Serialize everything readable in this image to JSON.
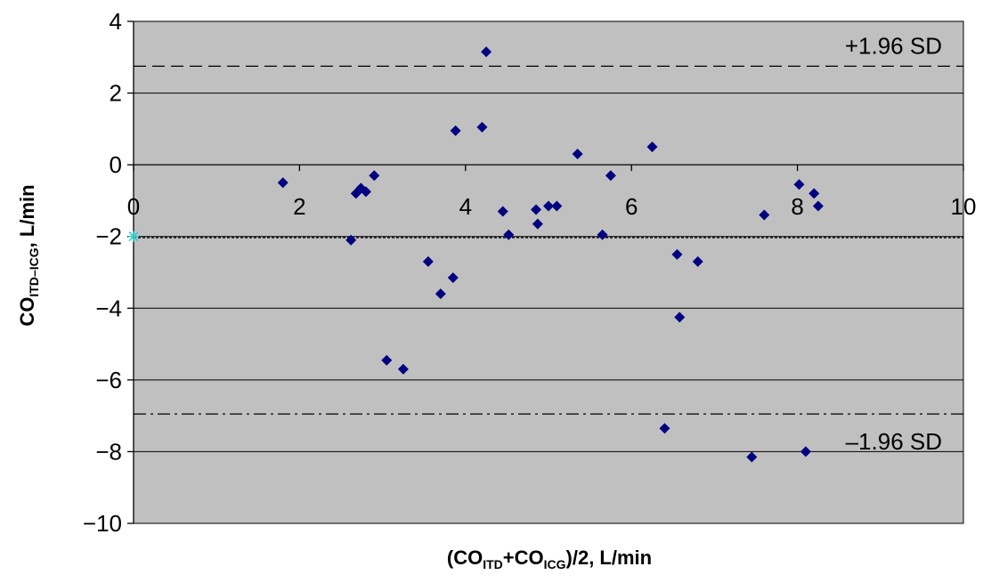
{
  "chart_data": {
    "type": "scatter",
    "title": "",
    "xlabel": {
      "prefix": "(CO",
      "sub1": "ITD",
      "middle": "+CO",
      "sub2": "ICG",
      "suffix": ")/2, L/min"
    },
    "ylabel": {
      "prefix": "CO",
      "sub": "ITD–ICG",
      "suffix": ", L/min"
    },
    "xlim": [
      0,
      10
    ],
    "ylim": [
      -10,
      4
    ],
    "x_ticks": [
      {
        "value": 0,
        "label": "0"
      },
      {
        "value": 2,
        "label": "2"
      },
      {
        "value": 4,
        "label": "4"
      },
      {
        "value": 6,
        "label": "6"
      },
      {
        "value": 8,
        "label": "8"
      },
      {
        "value": 10,
        "label": "10"
      }
    ],
    "y_ticks": [
      {
        "value": 4,
        "label": "4"
      },
      {
        "value": 2,
        "label": "2"
      },
      {
        "value": 0,
        "label": "0"
      },
      {
        "value": -2,
        "label": "−2"
      },
      {
        "value": -4,
        "label": "−4"
      },
      {
        "value": -6,
        "label": "−6"
      },
      {
        "value": -8,
        "label": "−8"
      },
      {
        "value": -10,
        "label": "−10"
      }
    ],
    "grid": true,
    "plot_background": "#c0c0c0",
    "marker_color": "#000080",
    "mean_marker_color": "#33cccc",
    "points": [
      {
        "x": 1.8,
        "y": -0.5
      },
      {
        "x": 2.62,
        "y": -2.1
      },
      {
        "x": 2.68,
        "y": -0.8
      },
      {
        "x": 2.74,
        "y": -0.65
      },
      {
        "x": 2.8,
        "y": -0.75
      },
      {
        "x": 2.9,
        "y": -0.3
      },
      {
        "x": 3.05,
        "y": -5.45
      },
      {
        "x": 3.25,
        "y": -5.7
      },
      {
        "x": 3.55,
        "y": -2.7
      },
      {
        "x": 3.7,
        "y": -3.6
      },
      {
        "x": 3.85,
        "y": -3.15
      },
      {
        "x": 3.88,
        "y": 0.95
      },
      {
        "x": 4.2,
        "y": 1.05
      },
      {
        "x": 4.25,
        "y": 3.15
      },
      {
        "x": 4.45,
        "y": -1.3
      },
      {
        "x": 4.52,
        "y": -1.95
      },
      {
        "x": 4.85,
        "y": -1.25
      },
      {
        "x": 4.87,
        "y": -1.65
      },
      {
        "x": 5.0,
        "y": -1.15
      },
      {
        "x": 5.1,
        "y": -1.15
      },
      {
        "x": 5.35,
        "y": 0.3
      },
      {
        "x": 5.65,
        "y": -1.95
      },
      {
        "x": 5.75,
        "y": -0.3
      },
      {
        "x": 6.25,
        "y": 0.5
      },
      {
        "x": 6.4,
        "y": -7.35
      },
      {
        "x": 6.55,
        "y": -2.5
      },
      {
        "x": 6.58,
        "y": -4.25
      },
      {
        "x": 6.8,
        "y": -2.7
      },
      {
        "x": 7.45,
        "y": -8.15
      },
      {
        "x": 7.6,
        "y": -1.4
      },
      {
        "x": 8.02,
        "y": -0.55
      },
      {
        "x": 8.1,
        "y": -8.0
      },
      {
        "x": 8.2,
        "y": -0.8
      },
      {
        "x": 8.25,
        "y": -1.15
      }
    ],
    "mean_point": {
      "x": 0,
      "y": -2.0
    },
    "reference_lines": [
      {
        "name": "upper-limit",
        "y": 2.75,
        "style": "dashed",
        "label": "+1.96 SD"
      },
      {
        "name": "mean",
        "y": -2.03,
        "style": "dotted",
        "label": ""
      },
      {
        "name": "lower-limit",
        "y": -6.95,
        "style": "dash-dot",
        "label": "–1.96 SD"
      }
    ]
  }
}
